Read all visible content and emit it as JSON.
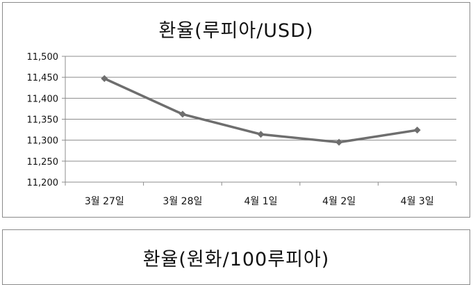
{
  "chart_data": [
    {
      "type": "line",
      "title": "환율(루피아/USD)",
      "categories": [
        "3월 27일",
        "3월 28일",
        "4월 1일",
        "4월 2일",
        "4월 3일"
      ],
      "series": [
        {
          "values": [
            11447,
            11362,
            11314,
            11295,
            11324
          ]
        }
      ],
      "ylim": [
        11200,
        11500
      ],
      "yticks": [
        "11,200",
        "11,250",
        "11,300",
        "11,350",
        "11,400",
        "11,450",
        "11,500"
      ],
      "grid": true,
      "marker": "diamond",
      "line_color": "#6e6e6e"
    },
    {
      "type": "line",
      "title": "환율(원화/100루피아)"
    }
  ]
}
